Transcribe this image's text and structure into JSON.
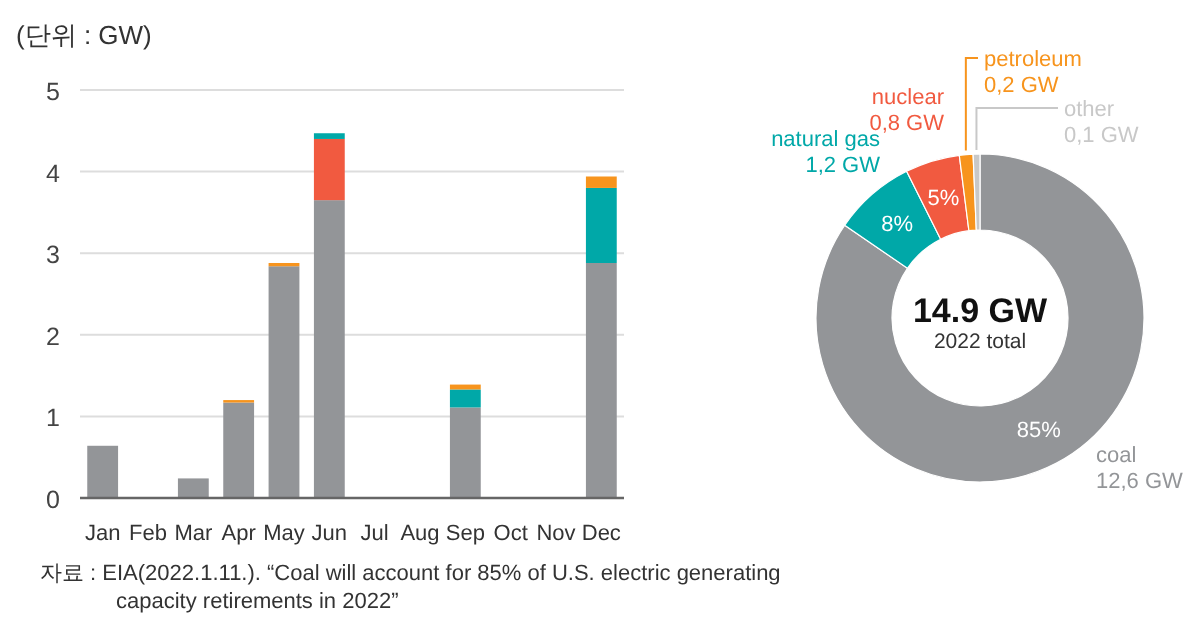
{
  "chart_data": [
    {
      "type": "bar",
      "stacked": true,
      "ylabel": "(단위 : GW)",
      "categories": [
        "Jan",
        "Feb",
        "Mar",
        "Apr",
        "May",
        "Jun",
        "Jul",
        "Aug",
        "Sep",
        "Oct",
        "Nov",
        "Dec"
      ],
      "series": [
        {
          "color": "#939598",
          "values": [
            0.64,
            0,
            0.24,
            1.17,
            2.84,
            3.65,
            0,
            0,
            1.11,
            0,
            0,
            2.88
          ]
        },
        {
          "color": "#f15a40",
          "values": [
            0,
            0,
            0,
            0,
            0,
            0.75,
            0,
            0,
            0,
            0,
            0,
            0
          ]
        },
        {
          "color": "#00a8a8",
          "values": [
            0,
            0,
            0,
            0,
            0,
            0.07,
            0,
            0,
            0.22,
            0,
            0,
            0.92
          ]
        },
        {
          "color": "#f7941d",
          "values": [
            0,
            0,
            0,
            0.03,
            0.04,
            0,
            0,
            0,
            0.06,
            0,
            0,
            0.14
          ]
        }
      ],
      "ylim": [
        0,
        5
      ],
      "yticks": [
        0,
        1,
        2,
        3,
        4,
        5
      ],
      "grid": "y",
      "annotations": [
        "자료 : EIA(2022.1.11.). “Coal will account for 85% of U.S. electric generating capacity retirements in 2022”"
      ]
    },
    {
      "type": "donut",
      "categories": [
        "coal",
        "natural gas",
        "nuclear",
        "petroleum",
        "other"
      ],
      "values": [
        12.6,
        1.2,
        0.8,
        0.2,
        0.1
      ],
      "value_labels": [
        "12,6 GW",
        "1,2 GW",
        "0,8 GW",
        "0,2 GW",
        "0,1 GW"
      ],
      "colors": [
        "#939598",
        "#00a8a8",
        "#f15a40",
        "#f7941d",
        "#c8c8c8"
      ],
      "annotations": [
        {
          "text": "85%",
          "x": "coal"
        },
        {
          "text": "8%",
          "x": "natural gas"
        },
        {
          "text": "5%",
          "x": "nuclear"
        },
        "14.9 GW",
        "2022 total"
      ]
    }
  ]
}
